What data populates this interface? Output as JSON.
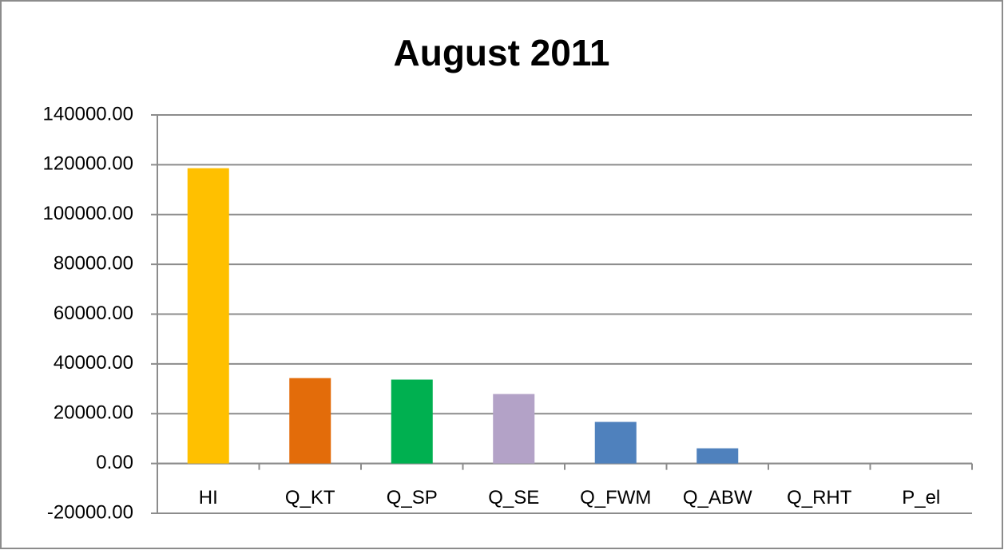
{
  "chart_data": {
    "type": "bar",
    "title": "August 2011",
    "categories": [
      "HI",
      "Q_KT",
      "Q_SP",
      "Q_SE",
      "Q_FWM",
      "Q_ABW",
      "Q_RHT",
      "P_el"
    ],
    "values": [
      118600,
      34300,
      33700,
      27900,
      16700,
      6100,
      0,
      0
    ],
    "colors": [
      "#ffc000",
      "#e36c0a",
      "#00b050",
      "#b3a2c7",
      "#4f81bd",
      "#4f81bd",
      "#4f81bd",
      "#4f81bd"
    ],
    "ylim": [
      -20000,
      140000
    ],
    "yticks": [
      {
        "value": -20000,
        "label": "-20000.00"
      },
      {
        "value": 0,
        "label": "0.00"
      },
      {
        "value": 20000,
        "label": "20000.00"
      },
      {
        "value": 40000,
        "label": "40000.00"
      },
      {
        "value": 60000,
        "label": "60000.00"
      },
      {
        "value": 80000,
        "label": "80000.00"
      },
      {
        "value": 100000,
        "label": "100000.00"
      },
      {
        "value": 120000,
        "label": "120000.00"
      },
      {
        "value": 140000,
        "label": "140000.00"
      }
    ],
    "grid": true
  }
}
